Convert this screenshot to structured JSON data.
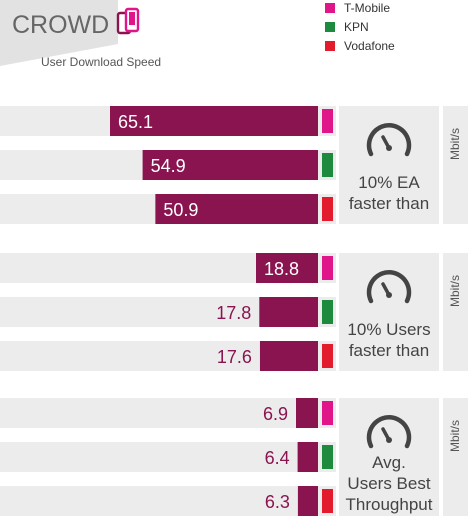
{
  "header": {
    "brand": "CROWD",
    "subtitle": "User Download Speed",
    "brand_icon": "phones-icon"
  },
  "legend": [
    {
      "name": "T-Mobile",
      "color": "#e0158a"
    },
    {
      "name": "KPN",
      "color": "#1e8a3e"
    },
    {
      "name": "Vodafone",
      "color": "#e21b2d"
    }
  ],
  "colors": {
    "bar": "#8a1450",
    "panel": "#ececec",
    "text_gray": "#555555"
  },
  "chart_data": {
    "type": "bar",
    "orientation": "horizontal",
    "unit": "Mbit/s",
    "groups": [
      {
        "label": "10% EA faster than",
        "label_lines": [
          "10% EA",
          "faster than"
        ],
        "icon": "speedometer-icon",
        "unit": "Mbit/s",
        "bars": [
          {
            "operator": "T-Mobile",
            "value": 65.1,
            "label": "65.1"
          },
          {
            "operator": "KPN",
            "value": 54.9,
            "label": "54.9"
          },
          {
            "operator": "Vodafone",
            "value": 50.9,
            "label": "50.9"
          }
        ]
      },
      {
        "label": "10% Users faster than",
        "label_lines": [
          "10% Users",
          "faster than"
        ],
        "icon": "speedometer-icon",
        "unit": "Mbit/s",
        "bars": [
          {
            "operator": "T-Mobile",
            "value": 18.8,
            "label": "18.8"
          },
          {
            "operator": "KPN",
            "value": 17.8,
            "label": "17.8"
          },
          {
            "operator": "Vodafone",
            "value": 17.6,
            "label": "17.6"
          }
        ]
      },
      {
        "label": "Avg. Users Best Throughput",
        "label_lines": [
          "Avg.",
          "Users Best",
          "Throughput"
        ],
        "icon": "speedometer-icon",
        "unit": "Mbit/s",
        "bars": [
          {
            "operator": "T-Mobile",
            "value": 6.9,
            "label": "6.9"
          },
          {
            "operator": "KPN",
            "value": 6.4,
            "label": "6.4"
          },
          {
            "operator": "Vodafone",
            "value": 6.3,
            "label": "6.3"
          }
        ]
      }
    ]
  }
}
